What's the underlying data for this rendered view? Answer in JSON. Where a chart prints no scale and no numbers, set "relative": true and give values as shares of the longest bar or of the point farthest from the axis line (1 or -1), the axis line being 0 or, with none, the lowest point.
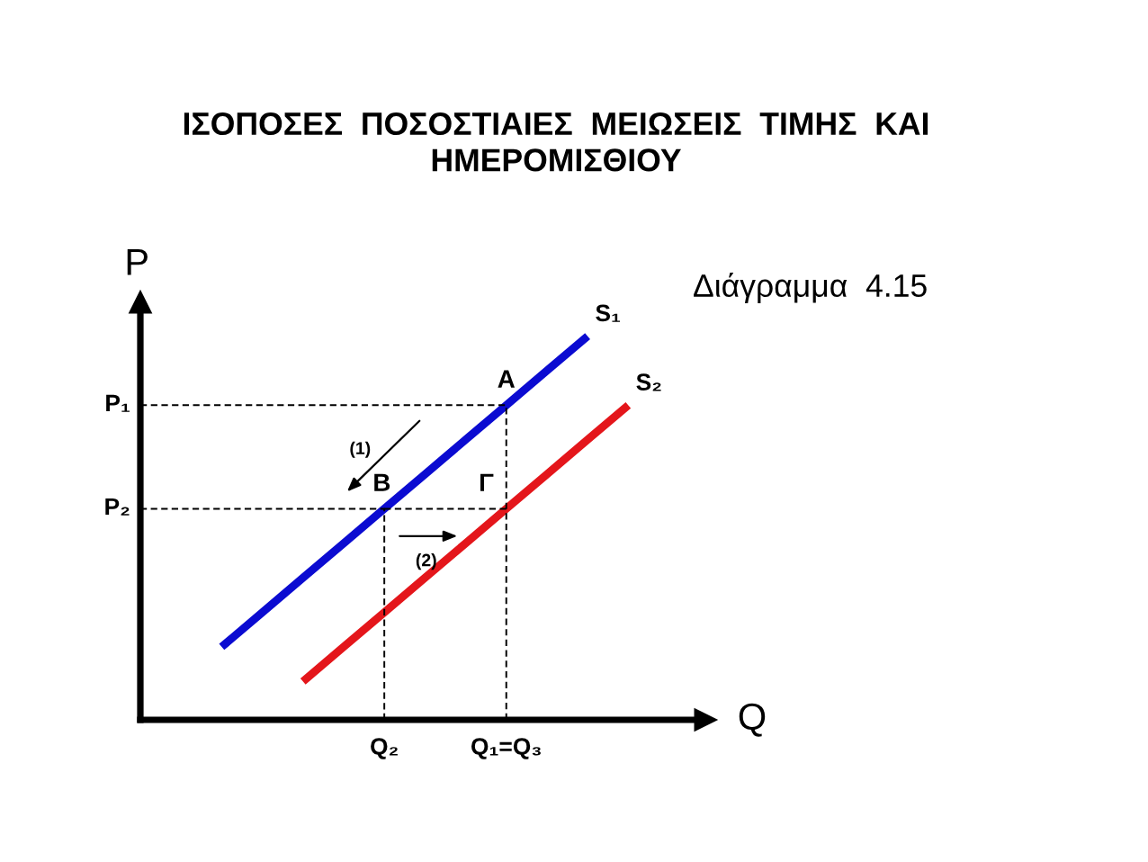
{
  "chart_data": {
    "type": "line",
    "title": "ΙΣΟΠΟΣΕΣ  ΠΟΣΟΣΤΙΑΙΕΣ  ΜΕΙΩΣΕΙΣ  ΤΙΜΗΣ  ΚΑΙ\nΗΜΕΡΟΜΙΣΘΙΟΥ",
    "xlabel": "Q",
    "ylabel": "P",
    "relative": true,
    "categories": [
      null,
      null,
      null,
      null,
      null,
      null,
      "Q₂",
      null,
      null,
      "Q₁=Q₃",
      null,
      null,
      null
    ],
    "series": [
      {
        "name": "S₁",
        "color": "#0b0bd1",
        "values": [
          null,
          null,
          0.19,
          0.28,
          0.37,
          0.46,
          0.55,
          0.64,
          0.73,
          0.82,
          0.91,
          1,
          null
        ]
      },
      {
        "name": "S₂",
        "color": "#e4161b",
        "values": [
          null,
          null,
          null,
          null,
          0.1,
          0.19,
          0.28,
          0.37,
          0.46,
          0.55,
          0.64,
          0.73,
          0.82
        ]
      },
      {
        "type": "step",
        "color": "#000000",
        "line_style": "dashed",
        "values": [
          0.82,
          0.82,
          0.82,
          0.82,
          0.82,
          0.82,
          0.82,
          0.82,
          0.82,
          0,
          null,
          null,
          null
        ]
      },
      {
        "type": "step",
        "color": "#000000",
        "line_style": "dashed",
        "values": [
          0.55,
          0.55,
          0.55,
          0.55,
          0.55,
          0.55,
          0,
          null,
          null,
          null,
          null,
          null,
          null
        ]
      },
      {
        "color": "#000000",
        "line_style": "dashed",
        "values": [
          null,
          null,
          null,
          null,
          null,
          null,
          0.55,
          0.55,
          0.55,
          0.55,
          null,
          null,
          null
        ]
      }
    ],
    "annotations": [
      "Διάγραμμα  4.15",
      "P₁",
      "P₂",
      {
        "text": "A",
        "x": "Q₁=Q₃",
        "y": 0.82
      },
      {
        "text": "B",
        "x": "Q₂",
        "y": 0.55
      },
      {
        "text": "Γ",
        "x": "Q₁=Q₃",
        "y": 0.55
      },
      "(1)",
      "(2)"
    ]
  }
}
